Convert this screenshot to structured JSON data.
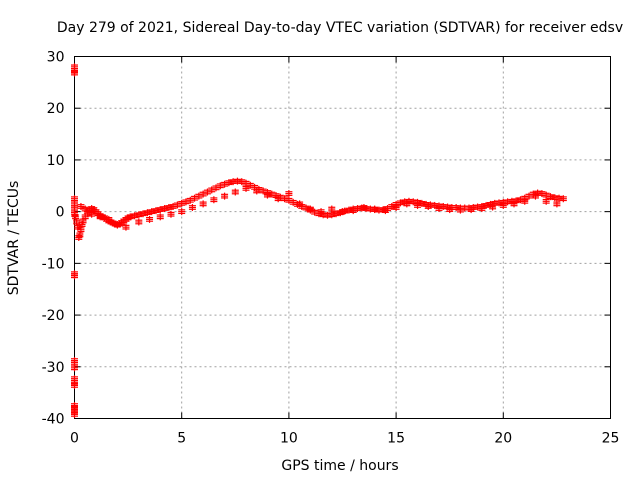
{
  "chart_data": {
    "type": "scatter",
    "title": "Day 279 of 2021, Sidereal Day-to-day VTEC variation (SDTVAR) for receiver edsv",
    "xlabel": "GPS time / hours",
    "ylabel": "SDTVAR / TECUs",
    "xlim": [
      0,
      25
    ],
    "ylim": [
      -40,
      30
    ],
    "xticks": [
      0,
      5,
      10,
      15,
      20,
      25
    ],
    "yticks": [
      -40,
      -30,
      -20,
      -10,
      0,
      10,
      20,
      30
    ],
    "xtick_labels": [
      "0",
      "5",
      "10",
      "15",
      "20",
      "25"
    ],
    "ytick_labels": [
      "-40",
      "-30",
      "-20",
      "-10",
      "0",
      "10",
      "20",
      "30"
    ],
    "grid": true,
    "marker": "plus",
    "color": "#ff0000",
    "series": [
      {
        "name": "edsv",
        "x": [
          0.0,
          0.0,
          0.0,
          0.0,
          0.0,
          0.0,
          0.0,
          0.0,
          0.0,
          0.0,
          0.0,
          0.0,
          0.0,
          0.0,
          0.0,
          0.0,
          0.0,
          0.0,
          0.0,
          0.05,
          0.1,
          0.15,
          0.2,
          0.25,
          0.3,
          0.35,
          0.4,
          0.5,
          0.6,
          0.7,
          0.8,
          0.9,
          1.0,
          1.1,
          1.2,
          1.3,
          1.4,
          1.5,
          1.6,
          1.7,
          1.8,
          1.9,
          2.0,
          2.1,
          2.2,
          2.3,
          2.4,
          2.5,
          2.6,
          2.8,
          3.0,
          3.2,
          3.4,
          3.6,
          3.8,
          4.0,
          4.2,
          4.4,
          4.6,
          4.8,
          5.0,
          5.2,
          5.4,
          5.6,
          5.8,
          6.0,
          6.2,
          6.4,
          6.6,
          6.8,
          7.0,
          7.2,
          7.4,
          7.6,
          7.8,
          8.0,
          8.2,
          8.4,
          8.6,
          8.8,
          9.0,
          9.2,
          9.4,
          9.6,
          9.8,
          10.0,
          10.2,
          10.4,
          10.6,
          10.8,
          11.0,
          11.2,
          11.4,
          11.6,
          11.8,
          12.0,
          12.2,
          12.4,
          12.6,
          12.8,
          13.0,
          13.2,
          13.4,
          13.6,
          13.8,
          14.0,
          14.2,
          14.4,
          14.6,
          14.8,
          15.0,
          15.2,
          15.4,
          15.6,
          15.8,
          16.0,
          16.2,
          16.4,
          16.6,
          16.8,
          17.0,
          17.2,
          17.4,
          17.6,
          17.8,
          18.0,
          18.2,
          18.4,
          18.6,
          18.8,
          19.0,
          19.2,
          19.4,
          19.6,
          19.8,
          20.0,
          20.2,
          20.4,
          20.6,
          20.8,
          21.0,
          21.2,
          21.4,
          21.6,
          21.8,
          22.0,
          22.2,
          22.4,
          22.6,
          22.8,
          0.3,
          0.5,
          0.8,
          1.2,
          1.6,
          2.0,
          2.4,
          3.0,
          3.5,
          4.0,
          4.5,
          5.0,
          5.5,
          6.0,
          6.5,
          7.0,
          7.5,
          8.0,
          8.5,
          9.0,
          9.5,
          10.0,
          10.5,
          11.0,
          11.5,
          12.0,
          12.5,
          13.0,
          13.5,
          14.0,
          14.5,
          15.0,
          15.5,
          16.0,
          16.5,
          17.0,
          17.5,
          18.0,
          18.5,
          19.0,
          19.5,
          20.0,
          20.5,
          21.0,
          21.5,
          22.0,
          22.5
        ],
        "y": [
          28.0,
          27.3,
          26.8,
          2.5,
          -12.0,
          -12.4,
          -28.8,
          -29.5,
          -30.2,
          -32.3,
          -33.0,
          -33.6,
          -37.5,
          -38.0,
          -38.6,
          -39.2,
          -0.5,
          0.5,
          1.5,
          -1.0,
          -2.0,
          -3.0,
          -5.0,
          -4.5,
          -3.5,
          -2.5,
          -1.8,
          -1.0,
          -0.3,
          0.3,
          0.6,
          0.4,
          0.0,
          -0.4,
          -0.8,
          -1.0,
          -1.2,
          -1.5,
          -1.8,
          -2.0,
          -2.2,
          -2.4,
          -2.6,
          -2.4,
          -2.1,
          -1.8,
          -1.5,
          -1.2,
          -1.0,
          -0.8,
          -0.6,
          -0.4,
          -0.2,
          0.0,
          0.2,
          0.4,
          0.6,
          0.8,
          1.0,
          1.3,
          1.6,
          1.9,
          2.2,
          2.6,
          3.0,
          3.4,
          3.8,
          4.2,
          4.6,
          5.0,
          5.3,
          5.6,
          5.8,
          5.9,
          5.8,
          5.5,
          5.1,
          4.7,
          4.3,
          4.0,
          3.7,
          3.4,
          3.1,
          2.8,
          2.5,
          2.2,
          1.8,
          1.4,
          1.0,
          0.7,
          0.3,
          -0.1,
          -0.4,
          -0.6,
          -0.7,
          -0.6,
          -0.4,
          -0.2,
          0.1,
          0.3,
          0.5,
          0.6,
          0.7,
          0.6,
          0.5,
          0.4,
          0.3,
          0.4,
          0.6,
          1.0,
          1.4,
          1.7,
          1.9,
          2.0,
          1.9,
          1.8,
          1.6,
          1.4,
          1.3,
          1.2,
          1.1,
          1.0,
          0.9,
          0.8,
          0.8,
          0.7,
          0.7,
          0.7,
          0.8,
          0.9,
          1.0,
          1.2,
          1.4,
          1.6,
          1.7,
          1.8,
          1.9,
          2.0,
          2.1,
          2.3,
          2.6,
          3.0,
          3.4,
          3.6,
          3.5,
          3.2,
          2.9,
          2.7,
          2.6,
          2.5,
          1.0,
          0.5,
          -0.5,
          -1.0,
          -1.5,
          -2.5,
          -3.0,
          -2.0,
          -1.5,
          -1.0,
          -0.5,
          0.0,
          0.8,
          1.5,
          2.3,
          3.0,
          3.8,
          4.5,
          4.0,
          3.2,
          2.5,
          3.5,
          1.5,
          0.5,
          0.0,
          0.5,
          0.0,
          0.2,
          0.8,
          0.5,
          0.2,
          0.8,
          1.5,
          1.2,
          1.0,
          0.6,
          0.4,
          0.3,
          0.4,
          0.6,
          0.9,
          1.2,
          1.5,
          2.0,
          3.0,
          2.0,
          1.5
        ]
      }
    ]
  }
}
